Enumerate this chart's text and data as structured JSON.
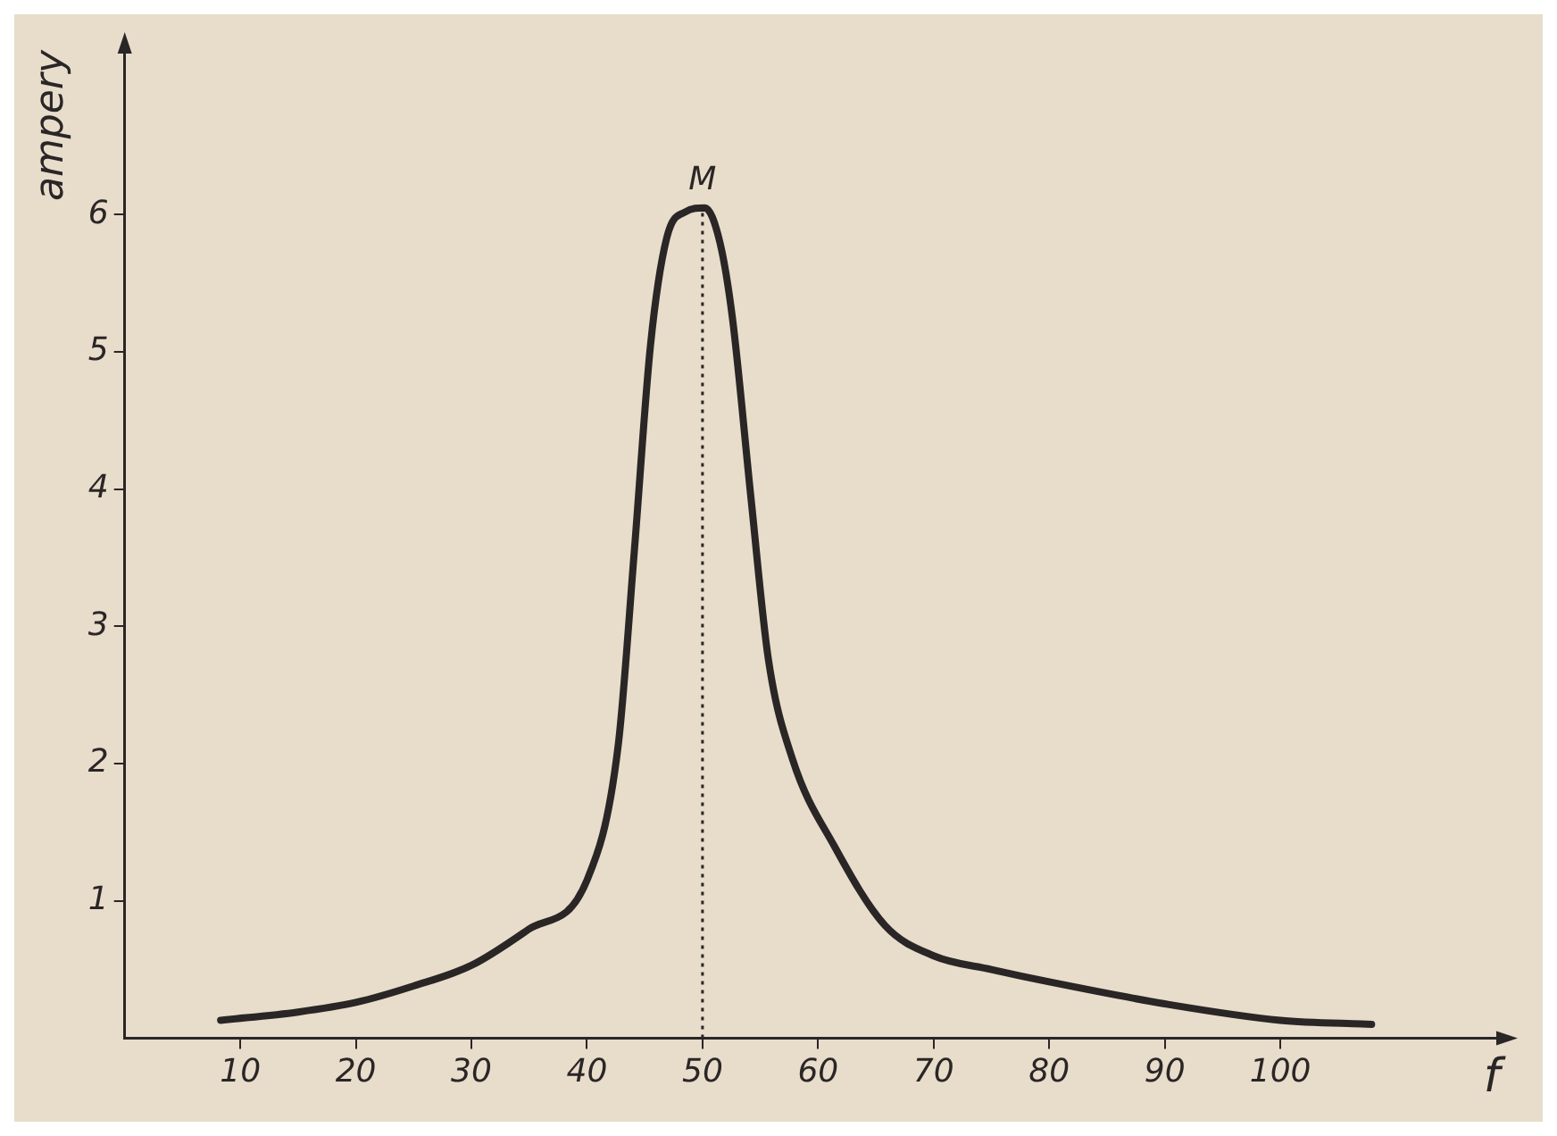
{
  "chart_data": {
    "type": "line",
    "xlabel": "f",
    "ylabel": "ampery",
    "series": [
      {
        "color": "#2a2626",
        "x": [
          8.3,
          15,
          20,
          25,
          30,
          34.9,
          40,
          42.7,
          44.1,
          45.5,
          46.9,
          48.5,
          50.2,
          51.5,
          52.6,
          54.2,
          55.7,
          57.8,
          61.4,
          65.8,
          70,
          75,
          80,
          90,
          100,
          107.9
        ],
        "values": [
          0.13,
          0.19,
          0.26,
          0.38,
          0.53,
          0.79,
          1.15,
          2.13,
          3.55,
          5.05,
          5.83,
          6.02,
          6.05,
          5.8,
          5.24,
          3.93,
          2.76,
          2.03,
          1.4,
          0.82,
          0.6,
          0.5,
          0.41,
          0.25,
          0.13,
          0.1
        ]
      }
    ],
    "xlim": [
      0,
      119
    ],
    "xticks": [
      10,
      20,
      30,
      40,
      50,
      60,
      70,
      80,
      90,
      100
    ],
    "ylim": [
      0,
      7.2
    ],
    "yticks": [
      1,
      2,
      3,
      4,
      5,
      6
    ],
    "grid": false,
    "legend": false,
    "marker": "none",
    "line_style": "solid",
    "ref_lines": [
      {
        "axis": "x",
        "value": 50,
        "line_style": "dotted",
        "color": "#2a2626"
      }
    ],
    "annotations": [
      {
        "text": "M",
        "x": 50,
        "y": 6.05
      }
    ]
  }
}
